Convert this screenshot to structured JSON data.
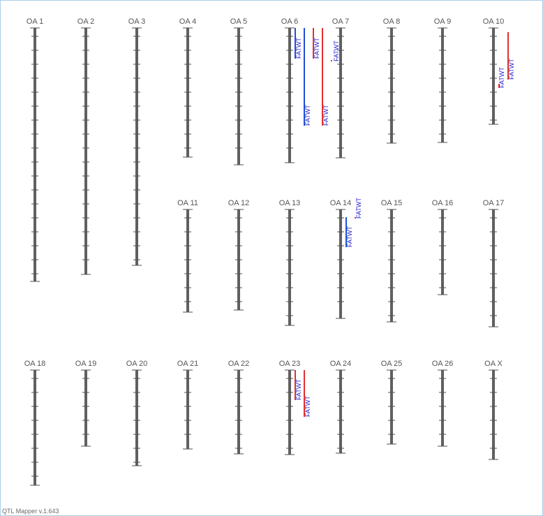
{
  "app": {
    "footer": "QTL Mapper v.1.643"
  },
  "colors": {
    "chromosome": "#606060",
    "tick": "#505050",
    "qtl_blue": "#1f4fd6",
    "qtl_red": "#e03030",
    "label_text": "#555555",
    "qtl_text": "#1a1ad0",
    "frame": "#a9cfe6"
  },
  "chromosomes": [
    {
      "name": "OA 1"
    },
    {
      "name": "OA 2"
    },
    {
      "name": "OA 3"
    },
    {
      "name": "OA 4"
    },
    {
      "name": "OA 5"
    },
    {
      "name": "OA 6"
    },
    {
      "name": "OA 7"
    },
    {
      "name": "OA 8"
    },
    {
      "name": "OA 9"
    },
    {
      "name": "OA 10"
    },
    {
      "name": "OA 11"
    },
    {
      "name": "OA 12"
    },
    {
      "name": "OA 13"
    },
    {
      "name": "OA 14"
    },
    {
      "name": "OA 15"
    },
    {
      "name": "OA 16"
    },
    {
      "name": "OA 17"
    },
    {
      "name": "OA 18"
    },
    {
      "name": "OA 19"
    },
    {
      "name": "OA 20"
    },
    {
      "name": "OA 21"
    },
    {
      "name": "OA 22"
    },
    {
      "name": "OA 23"
    },
    {
      "name": "OA 24"
    },
    {
      "name": "OA 25"
    },
    {
      "name": "OA 26"
    },
    {
      "name": "OA X"
    }
  ],
  "qtls": [
    {
      "chromosome": "OA 6",
      "trait": "FATWT",
      "color": "blue"
    },
    {
      "chromosome": "OA 6",
      "trait": "FATWT",
      "color": "blue"
    },
    {
      "chromosome": "OA 6",
      "trait": "FATWT",
      "color": "red"
    },
    {
      "chromosome": "OA 6",
      "trait": "FATWT",
      "color": "red"
    },
    {
      "chromosome": "OA 7",
      "trait": "FATWT",
      "color": "red"
    },
    {
      "chromosome": "OA 10",
      "trait": "FATWT",
      "color": "red"
    },
    {
      "chromosome": "OA 10",
      "trait": "FATWT",
      "color": "red"
    },
    {
      "chromosome": "OA 14",
      "trait": "FATWT",
      "color": "blue"
    },
    {
      "chromosome": "OA 14",
      "trait": "FATWT",
      "color": "red"
    },
    {
      "chromosome": "OA 23",
      "trait": "FATWT",
      "color": "red"
    },
    {
      "chromosome": "OA 23",
      "trait": "FATWT",
      "color": "red"
    }
  ]
}
